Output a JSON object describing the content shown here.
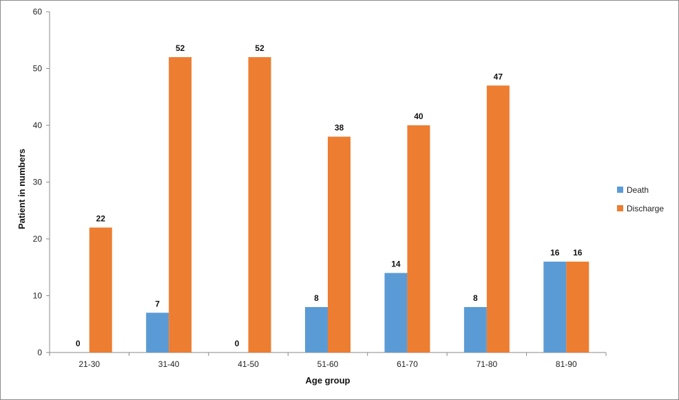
{
  "chart_data": {
    "type": "bar",
    "title": "",
    "xlabel": "Age group",
    "ylabel": "Patient in numbers",
    "ylim": [
      0,
      60
    ],
    "yticks": [
      0,
      10,
      20,
      30,
      40,
      50,
      60
    ],
    "grid": false,
    "legend_position": "right",
    "categories": [
      "21-30",
      "31-40",
      "41-50",
      "51-60",
      "61-70",
      "71-80",
      "81-90"
    ],
    "series": [
      {
        "name": "Death",
        "color": "#5b9bd5",
        "values": [
          0,
          7,
          0,
          8,
          14,
          8,
          16
        ]
      },
      {
        "name": "Discharge",
        "color": "#ed7d31",
        "values": [
          22,
          52,
          52,
          38,
          40,
          47,
          16
        ]
      }
    ]
  }
}
